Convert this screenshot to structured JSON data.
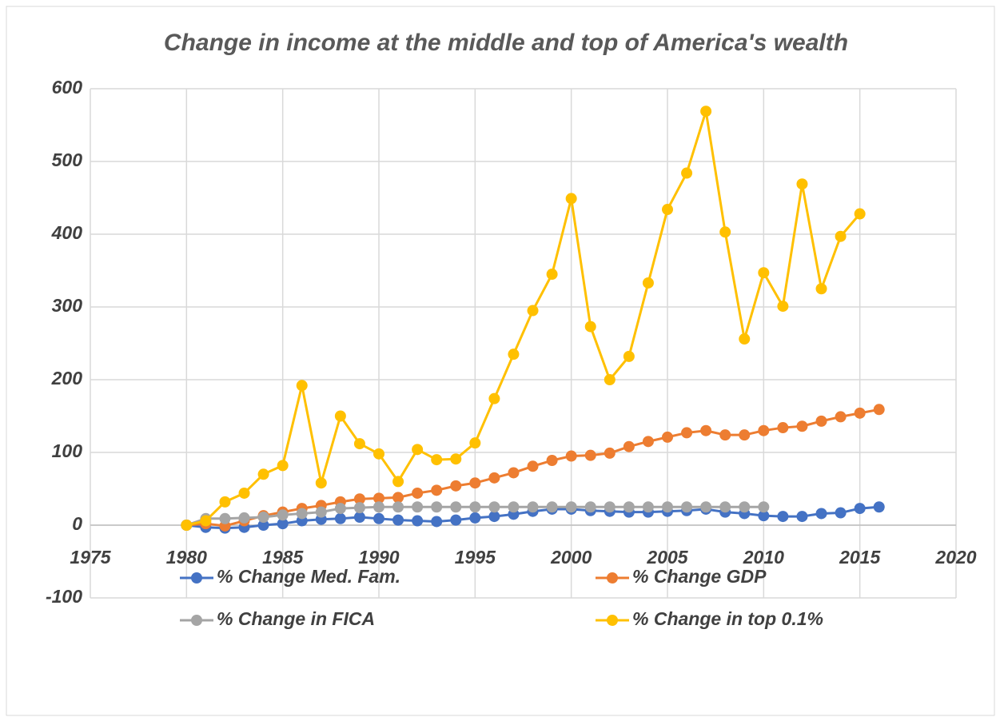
{
  "chart_data": {
    "type": "line",
    "title": "Change in income at the middle and top of America's wealth",
    "x": [
      1980,
      1981,
      1982,
      1983,
      1984,
      1985,
      1986,
      1987,
      1988,
      1989,
      1990,
      1991,
      1992,
      1993,
      1994,
      1995,
      1996,
      1997,
      1998,
      1999,
      2000,
      2001,
      2002,
      2003,
      2004,
      2005,
      2006,
      2007,
      2008,
      2009,
      2010,
      2011,
      2012,
      2013,
      2014,
      2015,
      2016
    ],
    "series": [
      {
        "name": "% Change Med. Fam.",
        "color": "#4472c4",
        "values": [
          0,
          -3,
          -4,
          -3,
          0,
          2,
          6,
          8,
          9,
          11,
          9,
          7,
          6,
          5,
          7,
          10,
          12,
          15,
          19,
          22,
          22,
          20,
          19,
          18,
          18,
          19,
          20,
          22,
          18,
          16,
          13,
          12,
          12,
          16,
          17,
          23,
          25
        ]
      },
      {
        "name": "% Change GDP",
        "color": "#ed7d31",
        "values": [
          0,
          2,
          -1,
          6,
          13,
          18,
          23,
          27,
          32,
          36,
          37,
          38,
          44,
          48,
          54,
          58,
          65,
          72,
          81,
          89,
          95,
          96,
          99,
          108,
          115,
          121,
          127,
          130,
          124,
          124,
          130,
          134,
          136,
          143,
          149,
          154,
          159
        ]
      },
      {
        "name": "% Change in FICA",
        "color": "#a5a5a5",
        "values": [
          0,
          9,
          9,
          10,
          11,
          14,
          16,
          18,
          23,
          24,
          25,
          25,
          25,
          25,
          25,
          25,
          25,
          25,
          25,
          25,
          25,
          25,
          25,
          25,
          25,
          25,
          25,
          25,
          25,
          25,
          25,
          null,
          null,
          null,
          null,
          null,
          null
        ]
      },
      {
        "name": "% Change in top 0.1%",
        "color": "#ffc000",
        "values": [
          0,
          6,
          32,
          44,
          70,
          82,
          192,
          58,
          150,
          112,
          98,
          60,
          104,
          90,
          91,
          113,
          174,
          235,
          295,
          345,
          449,
          273,
          200,
          232,
          333,
          434,
          484,
          569,
          403,
          256,
          347,
          301,
          469,
          325,
          397,
          428,
          null
        ]
      }
    ],
    "xlim": [
      1975,
      2020
    ],
    "xticks": [
      1975,
      1980,
      1985,
      1990,
      1995,
      2000,
      2005,
      2010,
      2015,
      2020
    ],
    "ylim": [
      -100,
      600
    ],
    "yticks": [
      -100,
      0,
      100,
      200,
      300,
      400,
      500,
      600
    ],
    "grid": true,
    "legend": "bottom"
  }
}
